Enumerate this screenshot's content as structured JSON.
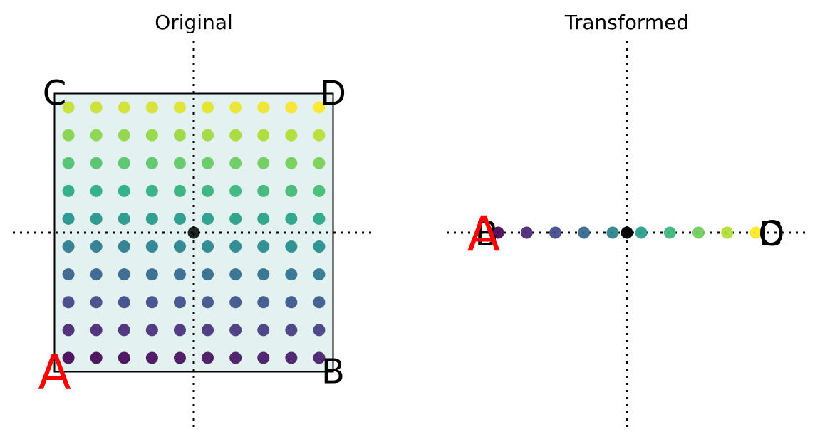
{
  "panels": [
    {
      "title": "Original",
      "square_fill": "#e4f1f1",
      "corners": [
        {
          "label": "A",
          "color": "#ff0000"
        },
        {
          "label": "B",
          "color": "#000000"
        },
        {
          "label": "C",
          "color": "#000000"
        },
        {
          "label": "D",
          "color": "#000000"
        }
      ]
    },
    {
      "title": "Transformed",
      "corners": [
        {
          "label": "B",
          "color": "#000000"
        },
        {
          "label": "A",
          "color": "#ff0000"
        },
        {
          "label": "C",
          "color": "#000000"
        },
        {
          "label": "D",
          "color": "#000000"
        }
      ]
    }
  ],
  "origin_color": "#000000",
  "axis_style": "dotted",
  "colormap": "viridis",
  "chart_data": [
    {
      "type": "scatter",
      "title": "Original",
      "grid": {
        "x": [
          -0.9,
          -0.7,
          -0.5,
          -0.3,
          -0.1,
          0.1,
          0.3,
          0.5,
          0.7,
          0.9
        ],
        "y": [
          -0.9,
          -0.7,
          -0.5,
          -0.3,
          -0.1,
          0.1,
          0.3,
          0.5,
          0.7,
          0.9
        ]
      },
      "square": [
        [
          -1,
          -1
        ],
        [
          1,
          -1
        ],
        [
          1,
          1
        ],
        [
          -1,
          1
        ]
      ],
      "corners": {
        "A": [
          -1,
          -1
        ],
        "B": [
          1,
          -1
        ],
        "C": [
          -1,
          1
        ],
        "D": [
          1,
          1
        ]
      },
      "xlim": [
        -1.3,
        1.3
      ],
      "ylim": [
        -1.4,
        1.4
      ]
    },
    {
      "type": "scatter",
      "title": "Transformed",
      "points_x": [
        -0.9,
        -0.7,
        -0.5,
        -0.3,
        -0.1,
        0.1,
        0.3,
        0.5,
        0.7,
        0.9
      ],
      "points_y": [
        0,
        0,
        0,
        0,
        0,
        0,
        0,
        0,
        0,
        0
      ],
      "corners": {
        "A": [
          -1,
          0
        ],
        "B": [
          -1,
          0
        ],
        "C": [
          1,
          0
        ],
        "D": [
          1,
          0
        ]
      },
      "xlim": [
        -1.3,
        1.3
      ],
      "ylim": [
        -1.4,
        1.4
      ]
    }
  ]
}
